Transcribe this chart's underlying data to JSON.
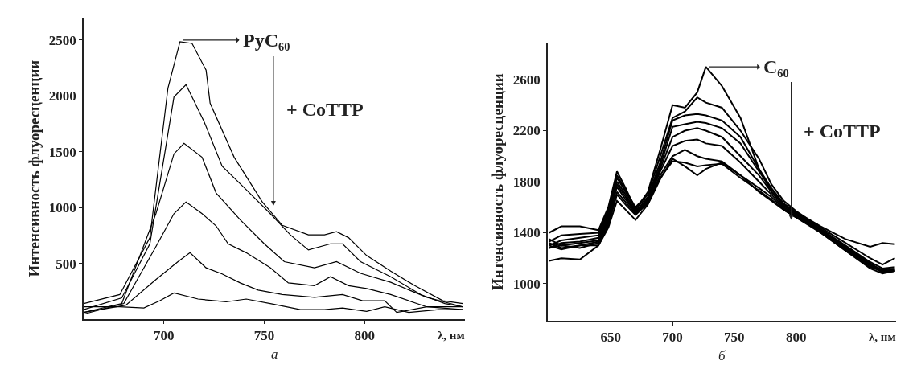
{
  "chart_data": [
    {
      "type": "line",
      "xlabel": "λ, нм",
      "ylabel": "Интенсивность флуоресценции",
      "xlim": [
        660,
        850
      ],
      "ylim": [
        0,
        2700
      ],
      "xticks": [
        700,
        750,
        800
      ],
      "yticks": [
        500,
        1000,
        1500,
        2000,
        2500
      ],
      "marker": "none",
      "line_style": "solid",
      "annotations": [
        {
          "text": "PyC₆₀",
          "x": 708,
          "y": 2500
        },
        "+ CoTTP",
        "а"
      ],
      "series": [
        {
          "color": "#000000",
          "x": [
            660,
            678,
            693,
            702,
            708,
            714,
            721,
            723,
            735,
            749,
            759,
            772,
            780,
            786,
            792,
            801,
            813,
            825,
            839,
            849
          ],
          "values": [
            140,
            220,
            730,
            2070,
            2485,
            2470,
            2230,
            1935,
            1450,
            1050,
            840,
            755,
            755,
            783,
            730,
            570,
            430,
            300,
            165,
            140
          ]
        },
        {
          "color": "#000000",
          "x": [
            660,
            679,
            693,
            705,
            711,
            720,
            729,
            741,
            753,
            763,
            772,
            783,
            789,
            798,
            813,
            828,
            840,
            849
          ],
          "values": [
            85,
            190,
            675,
            1990,
            2100,
            1770,
            1370,
            1160,
            945,
            755,
            620,
            675,
            675,
            515,
            380,
            220,
            140,
            110
          ]
        },
        {
          "color": "#000000",
          "x": [
            660,
            679,
            696,
            705,
            710,
            719,
            726,
            738,
            750,
            760,
            775,
            786,
            798,
            813,
            831,
            849
          ],
          "values": [
            60,
            140,
            945,
            1480,
            1575,
            1450,
            1130,
            890,
            675,
            515,
            460,
            515,
            410,
            330,
            195,
            110
          ]
        },
        {
          "color": "#000000",
          "x": [
            660,
            680,
            696,
            705,
            711,
            719,
            726,
            732,
            741,
            753,
            762,
            775,
            783,
            792,
            801,
            813,
            831,
            849
          ],
          "values": [
            45,
            140,
            650,
            945,
            1050,
            945,
            835,
            675,
            595,
            460,
            325,
            300,
            380,
            300,
            275,
            220,
            110,
            85
          ]
        },
        {
          "color": "#000000",
          "x": [
            660,
            681,
            696,
            707,
            713,
            721,
            729,
            738,
            747,
            759,
            775,
            789,
            799,
            810,
            816,
            831,
            849
          ],
          "values": [
            60,
            125,
            355,
            515,
            595,
            460,
            405,
            325,
            260,
            220,
            195,
            220,
            165,
            165,
            60,
            110,
            110
          ]
        },
        {
          "color": "#000000",
          "x": [
            660,
            678,
            690,
            698,
            705,
            717,
            731,
            741,
            753,
            768,
            780,
            789,
            801,
            810,
            822,
            837,
            849
          ],
          "values": [
            110,
            110,
            100,
            165,
            235,
            180,
            155,
            180,
            140,
            85,
            85,
            100,
            70,
            110,
            60,
            85,
            85
          ]
        }
      ]
    },
    {
      "type": "line",
      "xlabel": "λ, нм",
      "ylabel": "Интенсивность флуоресценции",
      "xlim": [
        599,
        881
      ],
      "ylim": [
        710,
        2890
      ],
      "xticks": [
        650,
        700,
        750,
        800
      ],
      "yticks": [
        1000,
        1400,
        1800,
        2200,
        2600
      ],
      "marker": "none",
      "line_style": "solid",
      "annotations": [
        {
          "text": "C₆₀",
          "x": 727,
          "y": 2700
        },
        "+ CoTTP",
        "б"
      ],
      "x": [
        600,
        610,
        625,
        640,
        648,
        655,
        662,
        670,
        680,
        690,
        700,
        710,
        720,
        727,
        740,
        755,
        770,
        780,
        790,
        800,
        820,
        840,
        860,
        870,
        880
      ],
      "series": [
        {
          "color": "#000000",
          "values": [
            1400,
            1450,
            1450,
            1420,
            1600,
            1880,
            1750,
            1580,
            1720,
            2050,
            2400,
            2380,
            2500,
            2700,
            2550,
            2300,
            1900,
            1720,
            1620,
            1560,
            1450,
            1350,
            1290,
            1320,
            1310
          ]
        },
        {
          "color": "#000000",
          "values": [
            1330,
            1380,
            1390,
            1400,
            1580,
            1850,
            1730,
            1600,
            1700,
            2000,
            2300,
            2350,
            2460,
            2420,
            2380,
            2200,
            1980,
            1780,
            1650,
            1570,
            1440,
            1320,
            1200,
            1150,
            1200
          ]
        },
        {
          "color": "#000000",
          "values": [
            1300,
            1340,
            1360,
            1380,
            1560,
            1830,
            1720,
            1590,
            1680,
            1950,
            2280,
            2320,
            2330,
            2320,
            2280,
            2150,
            1900,
            1750,
            1630,
            1560,
            1430,
            1300,
            1170,
            1120,
            1130
          ]
        },
        {
          "color": "#000000",
          "values": [
            1280,
            1320,
            1330,
            1360,
            1540,
            1800,
            1700,
            1570,
            1670,
            1920,
            2230,
            2250,
            2270,
            2260,
            2220,
            2100,
            1880,
            1740,
            1620,
            1550,
            1420,
            1290,
            1160,
            1100,
            1110
          ]
        },
        {
          "color": "#000000",
          "values": [
            1350,
            1300,
            1320,
            1340,
            1520,
            1780,
            1680,
            1560,
            1660,
            1900,
            2150,
            2200,
            2220,
            2200,
            2150,
            2000,
            1850,
            1720,
            1610,
            1550,
            1420,
            1280,
            1150,
            1090,
            1100
          ]
        },
        {
          "color": "#000000",
          "values": [
            1300,
            1270,
            1300,
            1330,
            1500,
            1760,
            1660,
            1560,
            1650,
            1880,
            2080,
            2120,
            2130,
            2100,
            2080,
            1950,
            1800,
            1700,
            1600,
            1540,
            1410,
            1270,
            1140,
            1090,
            1100
          ]
        },
        {
          "color": "#000000",
          "values": [
            1280,
            1300,
            1280,
            1320,
            1480,
            1720,
            1640,
            1550,
            1640,
            1850,
            2000,
            2050,
            2000,
            1980,
            1960,
            1850,
            1750,
            1680,
            1590,
            1530,
            1400,
            1260,
            1130,
            1100,
            1110
          ]
        },
        {
          "color": "#000000",
          "values": [
            1320,
            1280,
            1300,
            1300,
            1460,
            1700,
            1620,
            1540,
            1630,
            1830,
            1960,
            1950,
            1920,
            1930,
            1940,
            1830,
            1730,
            1660,
            1580,
            1520,
            1400,
            1260,
            1120,
            1080,
            1100
          ]
        },
        {
          "color": "#000000",
          "values": [
            1180,
            1200,
            1190,
            1300,
            1440,
            1650,
            1580,
            1500,
            1620,
            1820,
            1980,
            1920,
            1850,
            1900,
            1950,
            1850,
            1720,
            1650,
            1580,
            1520,
            1410,
            1280,
            1150,
            1110,
            1120
          ]
        }
      ]
    }
  ]
}
